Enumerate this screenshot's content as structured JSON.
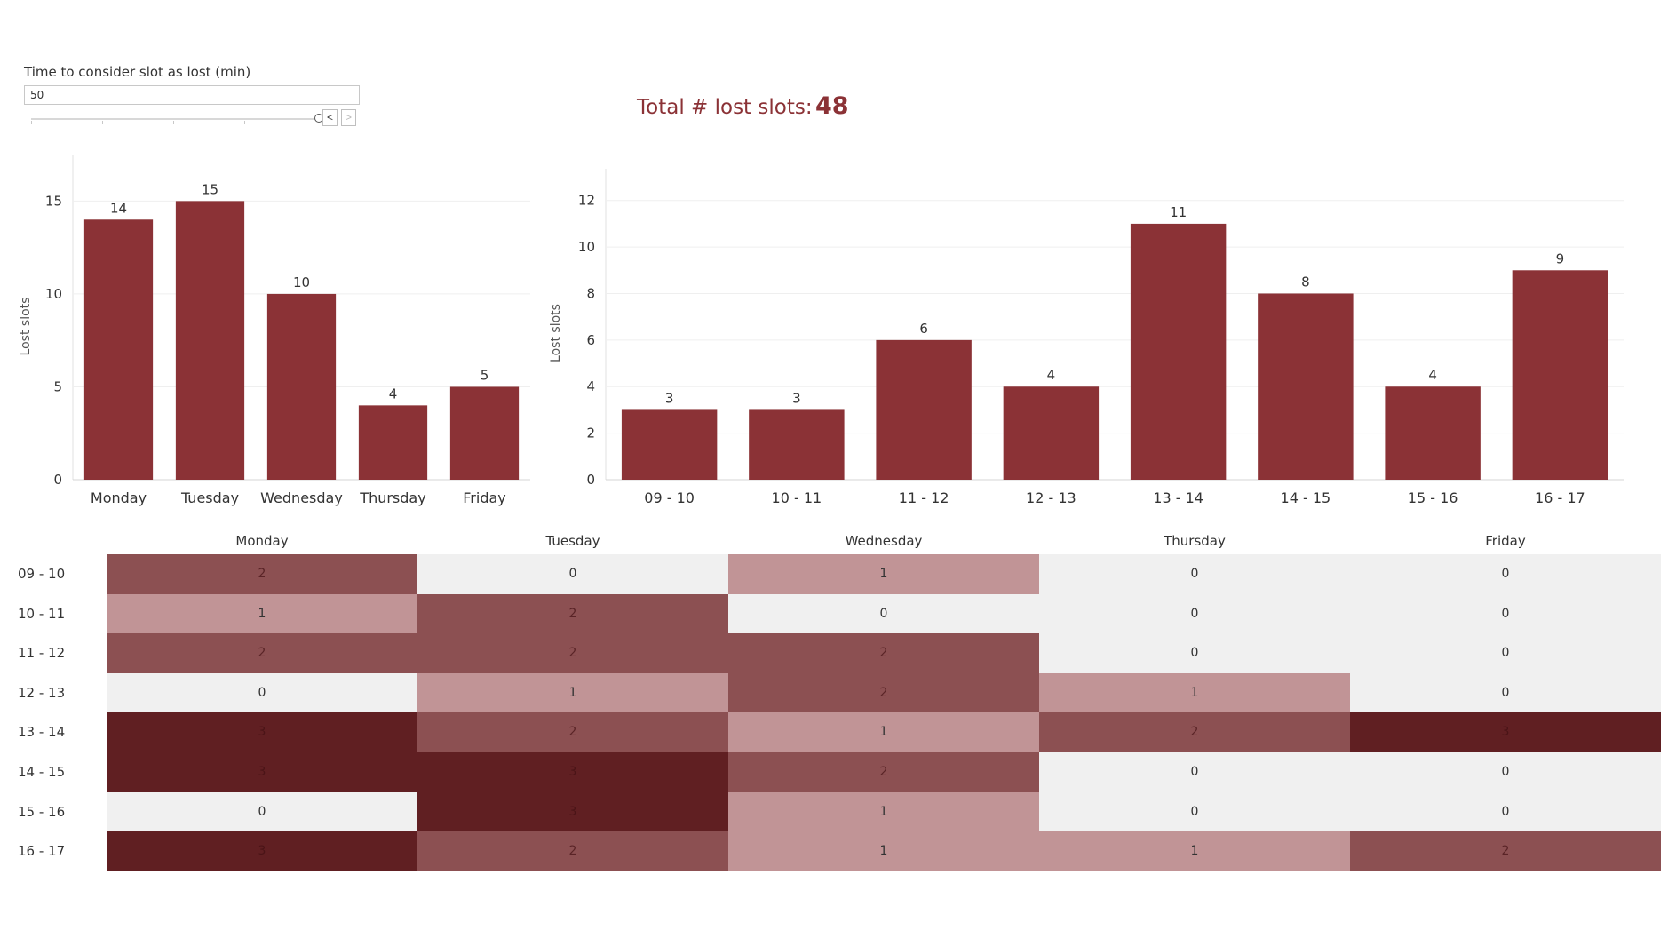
{
  "control": {
    "label": "Time to consider slot as lost (min)",
    "value": "50",
    "prev_glyph": "<",
    "next_glyph": ">",
    "slider_position": 1.0
  },
  "summary": {
    "label": "Total # lost slots:",
    "value": "48"
  },
  "colors": {
    "bar": "#8b3236",
    "accent_text": "#8b3236",
    "heat_levels": [
      "#f0f0f0",
      "#c19496",
      "#8c5052",
      "#601f22"
    ]
  },
  "chart_data": [
    {
      "type": "bar",
      "title": "",
      "xlabel": "",
      "ylabel": "Lost slots",
      "categories": [
        "Monday",
        "Tuesday",
        "Wednesday",
        "Thursday",
        "Friday"
      ],
      "values": [
        14,
        15,
        10,
        4,
        5
      ],
      "ylim": [
        0,
        16.5
      ],
      "yticks": [
        0,
        5,
        10,
        15
      ],
      "data_labels": true,
      "grid": true
    },
    {
      "type": "bar",
      "title": "",
      "xlabel": "",
      "ylabel": "Lost slots",
      "categories": [
        "09 - 10",
        "10 - 11",
        "11 - 12",
        "12 - 13",
        "13 - 14",
        "14 - 15",
        "15 - 16",
        "16 - 17"
      ],
      "values": [
        3,
        3,
        6,
        4,
        11,
        8,
        4,
        9
      ],
      "ylim": [
        0,
        12.6
      ],
      "yticks": [
        0,
        2,
        4,
        6,
        8,
        10,
        12
      ],
      "data_labels": true,
      "grid": true
    },
    {
      "type": "heatmap",
      "columns": [
        "Monday",
        "Tuesday",
        "Wednesday",
        "Thursday",
        "Friday"
      ],
      "rows": [
        "09 - 10",
        "10 - 11",
        "11 - 12",
        "12 - 13",
        "13 - 14",
        "14 - 15",
        "15 - 16",
        "16 - 17"
      ],
      "values": [
        [
          2,
          0,
          1,
          0,
          0
        ],
        [
          1,
          2,
          0,
          0,
          0
        ],
        [
          2,
          2,
          2,
          0,
          0
        ],
        [
          0,
          1,
          2,
          1,
          0
        ],
        [
          3,
          2,
          1,
          2,
          3
        ],
        [
          3,
          3,
          2,
          0,
          0
        ],
        [
          0,
          3,
          1,
          0,
          0
        ],
        [
          3,
          2,
          1,
          1,
          2
        ]
      ]
    }
  ]
}
